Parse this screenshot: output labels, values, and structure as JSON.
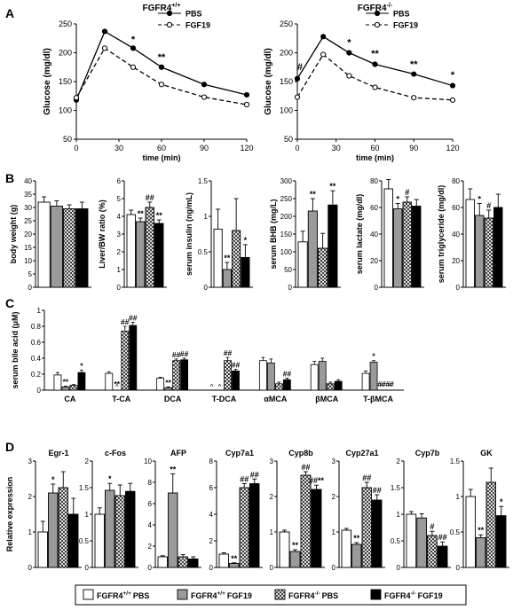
{
  "legend_groups": [
    {
      "name": "FGFR4+/+ PBS",
      "base": "FGFR4",
      "sup": "+/+",
      "suffix": "PBS",
      "fill": "#ffffff"
    },
    {
      "name": "FGFR4+/+ FGF19",
      "base": "FGFR4",
      "sup": "+/+",
      "suffix": "FGF19",
      "fill": "#9a9a9a"
    },
    {
      "name": "FGFR4-/- PBS",
      "base": "FGFR4",
      "sup": "-/-",
      "suffix": "PBS",
      "fill": "hatch"
    },
    {
      "name": "FGFR4-/- FGF19",
      "base": "FGFR4",
      "sup": "-/-",
      "suffix": "FGF19",
      "fill": "#000000"
    }
  ],
  "colors": {
    "gray": "#9a9a9a",
    "black": "#000000",
    "white": "#ffffff"
  },
  "chart_data": [
    {
      "panel": "A",
      "type": "line",
      "title": {
        "base": "FGFR4",
        "sup": "+/+"
      },
      "xlabel": "time (min)",
      "ylabel": "Glucose (mg/dl)",
      "xlim": [
        0,
        120
      ],
      "ylim": [
        50,
        250
      ],
      "xticks": [
        0,
        30,
        60,
        90,
        120
      ],
      "yticks": [
        50,
        100,
        150,
        200,
        250
      ],
      "legend": [
        "PBS",
        "FGF19"
      ],
      "series": [
        {
          "name": "PBS",
          "x": [
            0,
            20,
            40,
            60,
            90,
            120
          ],
          "y": [
            118,
            237,
            208,
            175,
            145,
            127
          ]
        },
        {
          "name": "FGF19",
          "x": [
            0,
            20,
            40,
            60,
            90,
            120
          ],
          "y": [
            122,
            208,
            175,
            145,
            123,
            110
          ]
        }
      ],
      "annotations": [
        {
          "text": "*",
          "x": 40,
          "y": 218
        },
        {
          "text": "**",
          "x": 60,
          "y": 187
        }
      ]
    },
    {
      "panel": "A",
      "type": "line",
      "title": {
        "base": "FGFR4",
        "sup": "-/-"
      },
      "xlabel": "time (min)",
      "ylabel": "Glucose (mg/dl)",
      "xlim": [
        0,
        120
      ],
      "ylim": [
        50,
        250
      ],
      "xticks": [
        0,
        30,
        60,
        90,
        120
      ],
      "yticks": [
        50,
        100,
        150,
        200,
        250
      ],
      "legend": [
        "PBS",
        "FGF19"
      ],
      "series": [
        {
          "name": "PBS",
          "x": [
            0,
            20,
            40,
            60,
            90,
            120
          ],
          "y": [
            155,
            228,
            200,
            180,
            163,
            143
          ]
        },
        {
          "name": "FGF19",
          "x": [
            0,
            20,
            40,
            60,
            90,
            120
          ],
          "y": [
            123,
            197,
            160,
            140,
            122,
            118
          ]
        }
      ],
      "annotations": [
        {
          "text": "#",
          "x": 2,
          "y": 170
        },
        {
          "text": "*",
          "x": 40,
          "y": 212
        },
        {
          "text": "**",
          "x": 60,
          "y": 193
        },
        {
          "text": "**",
          "x": 90,
          "y": 175
        },
        {
          "text": "*",
          "x": 120,
          "y": 156
        }
      ]
    },
    {
      "panel": "B",
      "type": "bar",
      "ylabel": "body weight (g)",
      "ylim": [
        0,
        40
      ],
      "yticks": [
        0,
        5,
        10,
        15,
        20,
        25,
        30,
        35,
        40
      ],
      "values": [
        32,
        30.5,
        29.5,
        29.5
      ],
      "errors": [
        2,
        2,
        1.5,
        2.5
      ],
      "marks": [
        "",
        "",
        "",
        ""
      ]
    },
    {
      "panel": "B",
      "type": "bar",
      "ylabel": "Liver/BW ratio (%)",
      "ylim": [
        0,
        6
      ],
      "yticks": [
        0,
        1,
        2,
        3,
        4,
        5,
        6
      ],
      "values": [
        4.1,
        3.7,
        4.5,
        3.6
      ],
      "errors": [
        0.25,
        0.2,
        0.3,
        0.2
      ],
      "marks": [
        "",
        "**",
        "##",
        "**"
      ]
    },
    {
      "panel": "B",
      "type": "bar",
      "ylabel": "serum insulin (ng/mL)",
      "ylim": [
        0,
        1.5
      ],
      "yticks": [
        0,
        0.5,
        1,
        1.5
      ],
      "values": [
        0.82,
        0.25,
        0.8,
        0.42
      ],
      "errors": [
        0.28,
        0.1,
        0.45,
        0.18
      ],
      "marks": [
        "",
        "**",
        "",
        "*"
      ]
    },
    {
      "panel": "B",
      "type": "bar",
      "ylabel": "serum BHB (mg/L)",
      "ylim": [
        0,
        300
      ],
      "yticks": [
        0,
        50,
        100,
        150,
        200,
        250,
        300
      ],
      "values": [
        128,
        215,
        110,
        232
      ],
      "errors": [
        30,
        35,
        42,
        40
      ],
      "marks": [
        "",
        "**",
        "",
        "**"
      ]
    },
    {
      "panel": "B",
      "type": "bar",
      "ylabel": "serum lactate (mg/dl)",
      "ylim": [
        0,
        80
      ],
      "yticks": [
        0,
        20,
        40,
        60,
        80
      ],
      "values": [
        74,
        59,
        64,
        61
      ],
      "errors": [
        7,
        4,
        4,
        5
      ],
      "marks": [
        "",
        "*",
        "#",
        ""
      ]
    },
    {
      "panel": "B",
      "type": "bar",
      "ylabel": "serum triglyceride (mg/dl)",
      "ylim": [
        0,
        80
      ],
      "yticks": [
        0,
        20,
        40,
        60,
        80
      ],
      "values": [
        66,
        54,
        52,
        60
      ],
      "errors": [
        8,
        9,
        6,
        10
      ],
      "marks": [
        "",
        "*",
        "#",
        ""
      ]
    },
    {
      "panel": "C",
      "type": "bar",
      "ylabel": "serum bile acid (μM)",
      "ylim": [
        0,
        1
      ],
      "yticks": [
        0,
        0.2,
        0.4,
        0.6,
        0.8,
        1
      ],
      "categories": [
        "CA",
        "T-CA",
        "DCA",
        "T-DCA",
        "αMCA",
        "βMCA",
        "T-βMCA"
      ],
      "series": [
        {
          "name": "FGFR4+/+ PBS",
          "values": [
            0.19,
            0.21,
            0.15,
            0,
            0.37,
            0.32,
            0.21
          ],
          "errors": [
            0.03,
            0.02,
            0.01,
            0,
            0.04,
            0.04,
            0.03
          ]
        },
        {
          "name": "FGFR4+/+ FGF19",
          "values": [
            0.04,
            0,
            0.03,
            0,
            0.34,
            0.36,
            0.35
          ],
          "errors": [
            0.01,
            0,
            0.01,
            0,
            0.05,
            0.04,
            0.02
          ]
        },
        {
          "name": "FGFR4-/- PBS",
          "values": [
            0.06,
            0.74,
            0.37,
            0.37,
            0.08,
            0.08,
            0
          ],
          "errors": [
            0.01,
            0.06,
            0.02,
            0.04,
            0.02,
            0.02,
            0
          ]
        },
        {
          "name": "FGFR4-/- FGF19",
          "values": [
            0.22,
            0.81,
            0.38,
            0.24,
            0.13,
            0.11,
            0
          ],
          "errors": [
            0.03,
            0.04,
            0.02,
            0.02,
            0.02,
            0.02,
            0
          ]
        }
      ],
      "marks": [
        [
          "",
          "**",
          "",
          "*"
        ],
        [
          "",
          "**",
          "##",
          "##"
        ],
        [
          "",
          "**",
          "##",
          "##"
        ],
        [
          "^",
          "^",
          "##",
          "##"
        ],
        [
          "",
          "",
          "",
          "##"
        ],
        [
          "",
          "",
          "",
          ""
        ],
        [
          "",
          "*",
          "##",
          "##"
        ]
      ],
      "caret_marks": [
        [
          0,
          0,
          0,
          0
        ],
        [
          0,
          1,
          0,
          0
        ],
        [
          0,
          0,
          0,
          0
        ],
        [
          1,
          1,
          0,
          0
        ],
        [
          0,
          0,
          0,
          0
        ],
        [
          0,
          0,
          0,
          0
        ],
        [
          0,
          0,
          1,
          1
        ]
      ]
    },
    {
      "panel": "D",
      "type": "bar",
      "ylabel": "Relative expression",
      "subplots": [
        {
          "title": "Egr-1",
          "ylim": [
            0,
            3
          ],
          "yticks": [
            0,
            1,
            2,
            3
          ],
          "values": [
            1,
            2.1,
            2.25,
            1.5
          ],
          "errors": [
            0.3,
            0.25,
            0.45,
            0.45
          ],
          "marks": [
            "",
            "*",
            "",
            ""
          ]
        },
        {
          "title": "c-Fos",
          "ylim": [
            0,
            2
          ],
          "yticks": [
            0,
            0.5,
            1,
            1.5,
            2
          ],
          "values": [
            1,
            1.45,
            1.35,
            1.43
          ],
          "errors": [
            0.12,
            0.13,
            0.2,
            0.15
          ],
          "marks": [
            "",
            "*",
            "",
            ""
          ]
        },
        {
          "title": "AFP",
          "ylim": [
            0,
            10
          ],
          "yticks": [
            0,
            2,
            4,
            6,
            8,
            10
          ],
          "values": [
            1,
            7,
            1,
            0.8
          ],
          "errors": [
            0.1,
            1.8,
            0.2,
            0.2
          ],
          "marks": [
            "",
            "**",
            "",
            ""
          ]
        },
        {
          "title": "Cyp7a1",
          "ylim": [
            0,
            8
          ],
          "yticks": [
            0,
            2,
            4,
            6,
            8
          ],
          "values": [
            1,
            0.3,
            6,
            6.3
          ],
          "errors": [
            0.1,
            0.05,
            0.3,
            0.35
          ],
          "marks": [
            "",
            "**",
            "##",
            "##"
          ]
        },
        {
          "title": "Cyp8b",
          "ylim": [
            0,
            3
          ],
          "yticks": [
            0,
            1,
            2,
            3
          ],
          "values": [
            1,
            0.45,
            2.6,
            2.2
          ],
          "errors": [
            0.05,
            0.05,
            0.1,
            0.12
          ],
          "marks": [
            "",
            "**",
            "##",
            "##**"
          ]
        },
        {
          "title": "Cyp27a1",
          "ylim": [
            0,
            3
          ],
          "yticks": [
            0,
            1,
            2,
            3
          ],
          "values": [
            1.05,
            0.65,
            2.25,
            1.9
          ],
          "errors": [
            0.05,
            0.05,
            0.15,
            0.15
          ],
          "marks": [
            "",
            "**",
            "##",
            "##"
          ]
        },
        {
          "title": "Cyp7b",
          "ylim": [
            0,
            2
          ],
          "yticks": [
            0,
            0.5,
            1,
            1.5,
            2
          ],
          "values": [
            1,
            0.93,
            0.6,
            0.4
          ],
          "errors": [
            0.05,
            0.08,
            0.08,
            0.08
          ],
          "marks": [
            "",
            "",
            "#",
            "##"
          ]
        },
        {
          "title": "GK",
          "ylim": [
            0,
            1.5
          ],
          "yticks": [
            0,
            0.5,
            1,
            1.5
          ],
          "values": [
            1,
            0.42,
            1.2,
            0.73
          ],
          "errors": [
            0.1,
            0.04,
            0.2,
            0.13
          ],
          "marks": [
            "",
            "**",
            "",
            "*"
          ]
        }
      ]
    }
  ],
  "panel_letters": [
    "A",
    "B",
    "C",
    "D"
  ]
}
